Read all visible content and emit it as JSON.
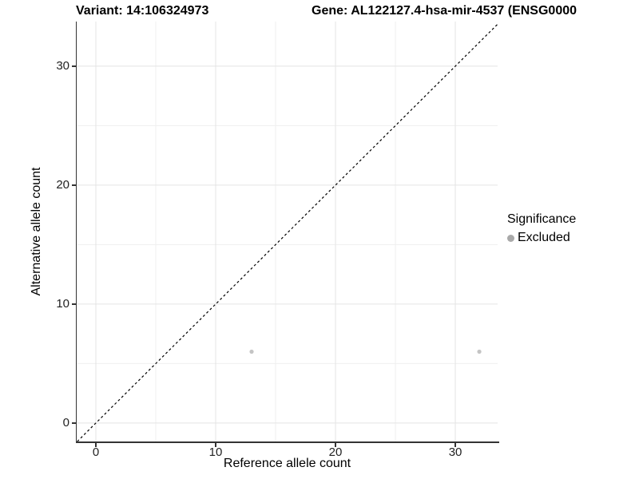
{
  "chart_data": {
    "type": "scatter",
    "title_left": "Variant: 14:106324973",
    "title_right": "Gene: AL122127.4-hsa-mir-4537 (ENSG0000",
    "xlabel": "Reference allele count",
    "ylabel": "Alternative allele count",
    "xlim": [
      -1.6,
      33.53
    ],
    "ylim": [
      -1.55,
      33.75
    ],
    "x_ticks": [
      0,
      10,
      20,
      30
    ],
    "y_ticks": [
      0,
      10,
      20,
      30
    ],
    "x_minor_ticks": [
      5,
      15,
      25
    ],
    "y_minor_ticks": [
      5,
      15,
      25
    ],
    "grid": true,
    "identity_line": {
      "style": "dashed",
      "color": "#000000"
    },
    "series": [
      {
        "name": "Excluded",
        "color": "#c4c4c4",
        "points": [
          {
            "x": 13,
            "y": 6
          },
          {
            "x": 32,
            "y": 6
          }
        ]
      }
    ],
    "legend": {
      "title": "Significance",
      "position": "right",
      "items": [
        {
          "label": "Excluded",
          "color": "#a9a9a9"
        }
      ]
    }
  },
  "colors": {
    "axis_line": "#333333",
    "tick_text": "#222222",
    "grid_major": "#e4e4e4",
    "grid_minor": "#efefef",
    "background": "#ffffff"
  }
}
